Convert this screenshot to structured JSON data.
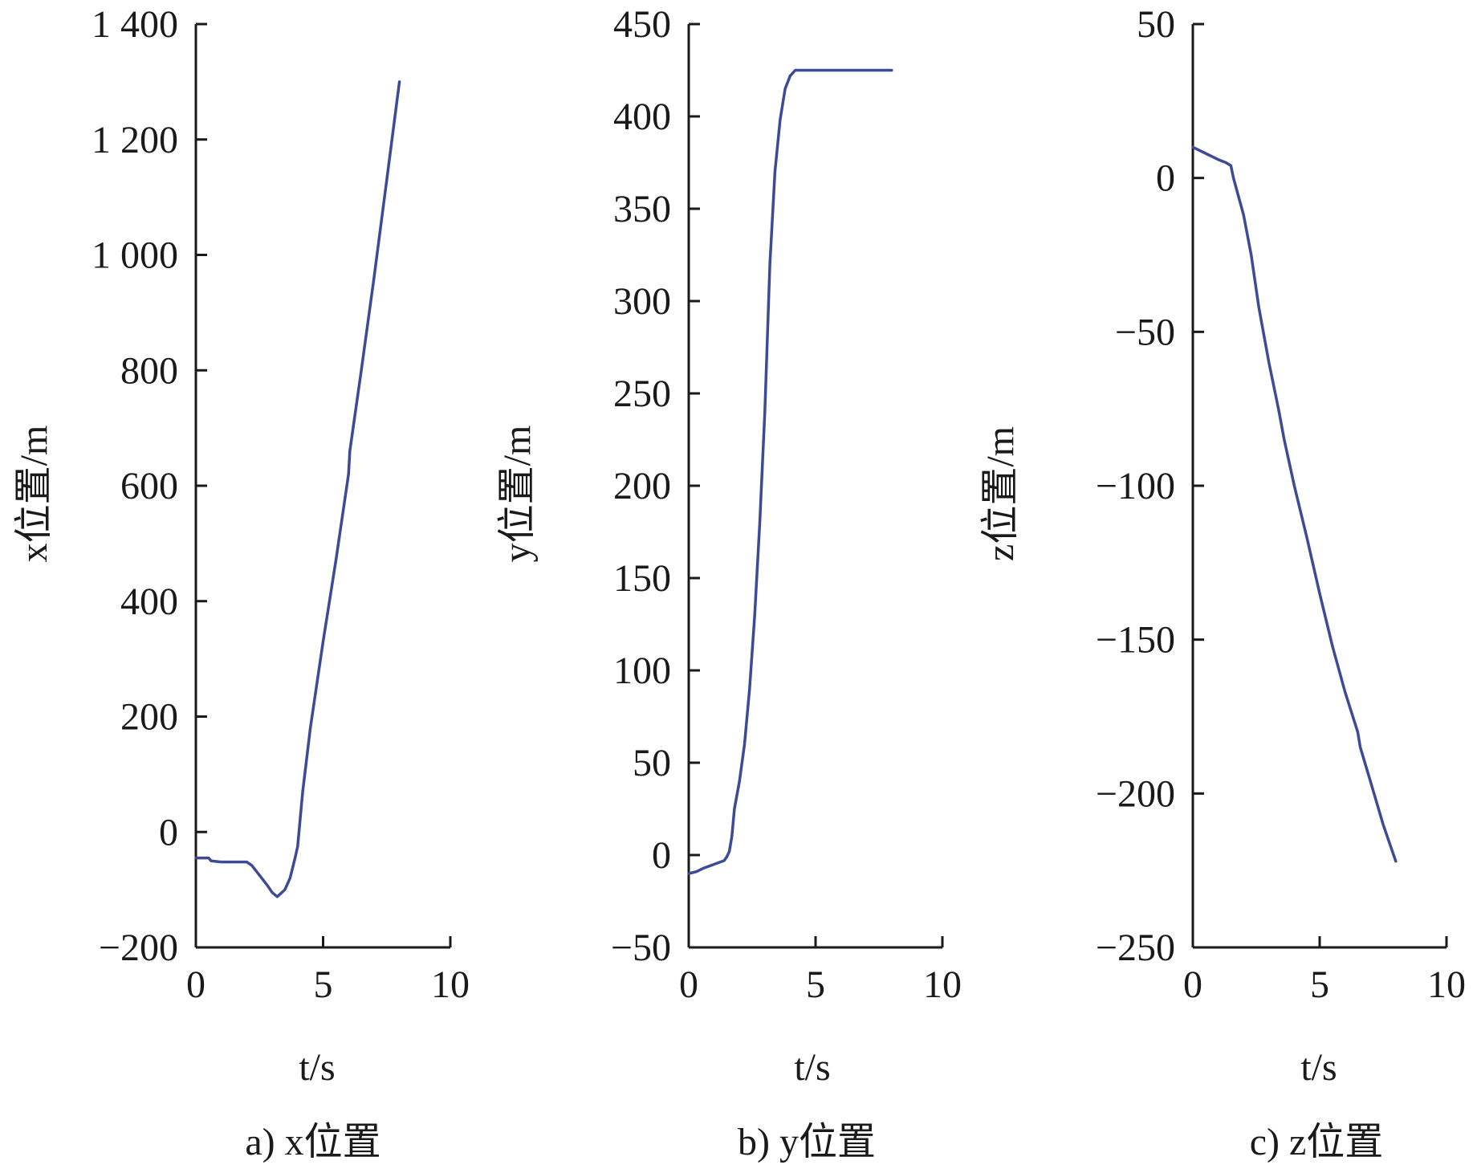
{
  "colors": {
    "line": "#3d4a96",
    "axis": "#1a1a1a",
    "background": "#ffffff"
  },
  "chart_data": [
    {
      "type": "line",
      "caption": "a) x位置",
      "xlabel": "t/s",
      "ylabel": "x位置/m",
      "xlim": [
        0,
        10
      ],
      "ylim": [
        -200,
        1400
      ],
      "xticks": [
        0,
        5,
        10
      ],
      "xtick_labels": [
        "0",
        "5",
        "10"
      ],
      "yticks": [
        -200,
        0,
        200,
        400,
        600,
        800,
        1000,
        1200,
        1400
      ],
      "ytick_labels": [
        "−200",
        "0",
        "200",
        "400",
        "600",
        "800",
        "1 000",
        "1 200",
        "1 400"
      ],
      "grid": false,
      "series": [
        {
          "x": [
            0,
            0.5,
            0.6,
            1.0,
            1.5,
            2.0,
            2.2,
            2.5,
            2.8,
            3.0,
            3.2,
            3.3,
            3.5,
            3.7,
            3.9,
            4.0,
            4.2,
            4.5,
            5.0,
            5.5,
            6.0,
            6.05,
            6.5,
            7.0,
            7.5,
            8.0
          ],
          "y": [
            -45,
            -45,
            -50,
            -52,
            -52,
            -52,
            -58,
            -75,
            -92,
            -105,
            -112,
            -108,
            -100,
            -80,
            -45,
            -25,
            70,
            180,
            330,
            470,
            620,
            660,
            800,
            960,
            1130,
            1300
          ]
        }
      ]
    },
    {
      "type": "line",
      "caption": "b) y位置",
      "xlabel": "t/s",
      "ylabel": "y位置/m",
      "xlim": [
        0,
        10
      ],
      "ylim": [
        -50,
        450
      ],
      "xticks": [
        0,
        5,
        10
      ],
      "xtick_labels": [
        "0",
        "5",
        "10"
      ],
      "yticks": [
        -50,
        0,
        50,
        100,
        150,
        200,
        250,
        300,
        350,
        400,
        450
      ],
      "ytick_labels": [
        "−50",
        "0",
        "50",
        "100",
        "150",
        "200",
        "250",
        "300",
        "350",
        "400",
        "450"
      ],
      "grid": false,
      "series": [
        {
          "x": [
            0,
            0.3,
            0.6,
            1.0,
            1.4,
            1.5,
            1.6,
            1.7,
            1.8,
            2.0,
            2.2,
            2.4,
            2.6,
            2.8,
            3.0,
            3.2,
            3.4,
            3.6,
            3.8,
            4.0,
            4.2,
            4.4,
            5.0,
            6.0,
            7.0,
            8.0
          ],
          "y": [
            -10,
            -9,
            -7,
            -5,
            -3,
            -1,
            2,
            10,
            25,
            40,
            60,
            90,
            130,
            180,
            240,
            320,
            370,
            398,
            415,
            422,
            425,
            425,
            425,
            425,
            425,
            425
          ]
        }
      ]
    },
    {
      "type": "line",
      "caption": "c) z位置",
      "xlabel": "t/s",
      "ylabel": "z位置/m",
      "xlim": [
        0,
        10
      ],
      "ylim": [
        -250,
        50
      ],
      "xticks": [
        0,
        5,
        10
      ],
      "xtick_labels": [
        "0",
        "5",
        "10"
      ],
      "yticks": [
        -250,
        -200,
        -150,
        -100,
        -50,
        0,
        50
      ],
      "ytick_labels": [
        "−250",
        "−200",
        "−150",
        "−100",
        "−50",
        "0",
        "50"
      ],
      "grid": false,
      "series": [
        {
          "x": [
            0,
            0.5,
            1.0,
            1.3,
            1.5,
            1.6,
            2.0,
            2.3,
            2.6,
            3.0,
            3.3,
            3.4,
            3.6,
            4.0,
            4.5,
            5.0,
            5.5,
            6.0,
            6.5,
            6.6,
            7.0,
            7.5,
            8.0
          ],
          "y": [
            10,
            8,
            6,
            5,
            4,
            0,
            -12,
            -25,
            -42,
            -60,
            -72,
            -76,
            -85,
            -100,
            -117,
            -135,
            -152,
            -167,
            -180,
            -185,
            -196,
            -210,
            -222
          ]
        }
      ]
    }
  ]
}
